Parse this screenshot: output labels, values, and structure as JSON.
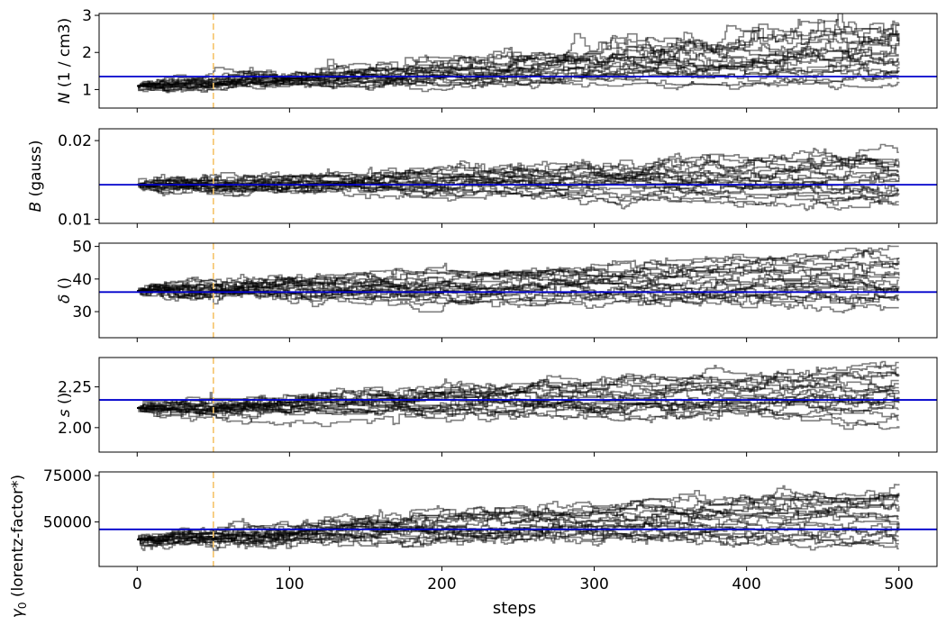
{
  "chart_data": {
    "type": "line",
    "description_free": true,
    "shared_x": {
      "label": "steps",
      "lim": [
        -25,
        525
      ],
      "ticks": [
        0,
        100,
        200,
        300,
        400,
        500
      ],
      "tick_labels": [
        "0",
        "100",
        "200",
        "300",
        "400",
        "500"
      ]
    },
    "burn_in_step": 50,
    "n_walkers": 20,
    "n_steps": 500,
    "colors": {
      "walker": "#000000",
      "truth": "#0000cc",
      "burn_in": "#f5c46a",
      "axis": "#000000"
    },
    "panels": [
      {
        "ylabel_italic": "N",
        "ylabel_rest": " (1 / cm3)",
        "ylim": [
          0.5,
          3.05
        ],
        "yticks": [
          1,
          2,
          3
        ],
        "ytick_labels": [
          "1",
          "2",
          "3"
        ],
        "truth": 1.35,
        "init": 1.1,
        "final_range": [
          0.85,
          2.9
        ],
        "log": true
      },
      {
        "ylabel_italic": "B",
        "ylabel_rest": " (gauss)",
        "ylim": [
          0.0095,
          0.0215
        ],
        "yticks": [
          0.01,
          0.02
        ],
        "ytick_labels": [
          "0.01",
          "0.02"
        ],
        "truth": 0.0144,
        "init": 0.0144,
        "final_range": [
          0.0107,
          0.0185
        ],
        "log": true
      },
      {
        "ylabel_italic": "δ",
        "ylabel_rest": " ()",
        "ylim": [
          22,
          51
        ],
        "yticks": [
          30,
          40,
          50
        ],
        "ytick_labels": [
          "30",
          "40",
          "50"
        ],
        "truth": 36,
        "init": 36.3,
        "final_range": [
          28,
          48.5
        ],
        "log": false
      },
      {
        "ylabel_italic": "s",
        "ylabel_rest": " ()",
        "ylim": [
          1.85,
          2.43
        ],
        "yticks": [
          2.0,
          2.25
        ],
        "ytick_labels": [
          "2.00",
          "2.25"
        ],
        "truth": 2.17,
        "init": 2.12,
        "final_range": [
          1.98,
          2.38
        ],
        "log": false
      },
      {
        "ylabel_italic": "γ",
        "ylabel_sub": "0",
        "ylabel_rest": " (lorentz-factor*)",
        "ylim": [
          26000,
          77000
        ],
        "yticks": [
          50000,
          75000
        ],
        "ytick_labels": [
          "50000",
          "75000"
        ],
        "truth": 46000,
        "init": 40500,
        "final_range": [
          33000,
          70000
        ],
        "log": false
      }
    ]
  }
}
